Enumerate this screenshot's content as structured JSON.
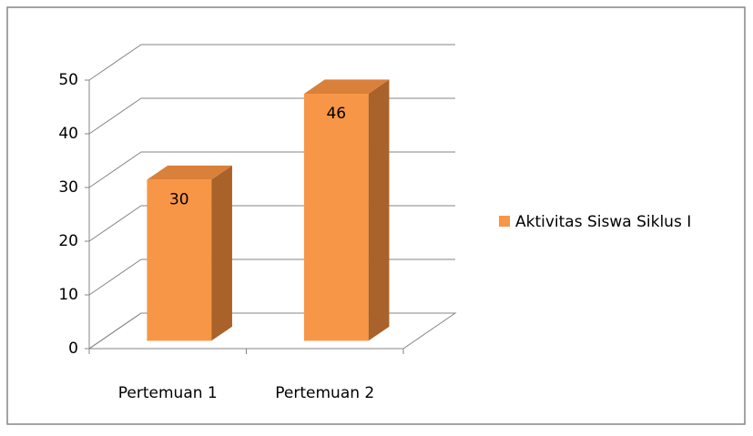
{
  "chart_data": {
    "type": "bar3d",
    "categories": [
      "Pertemuan 1",
      "Pertemuan 2"
    ],
    "series": [
      {
        "name": "Aktivitas Siswa Siklus I",
        "color": "#f79646",
        "values": [
          30,
          46
        ]
      }
    ],
    "ylim": [
      0,
      50
    ],
    "yticks": [
      0,
      10,
      20,
      30,
      40,
      50
    ],
    "grid": true,
    "legend": "right"
  }
}
